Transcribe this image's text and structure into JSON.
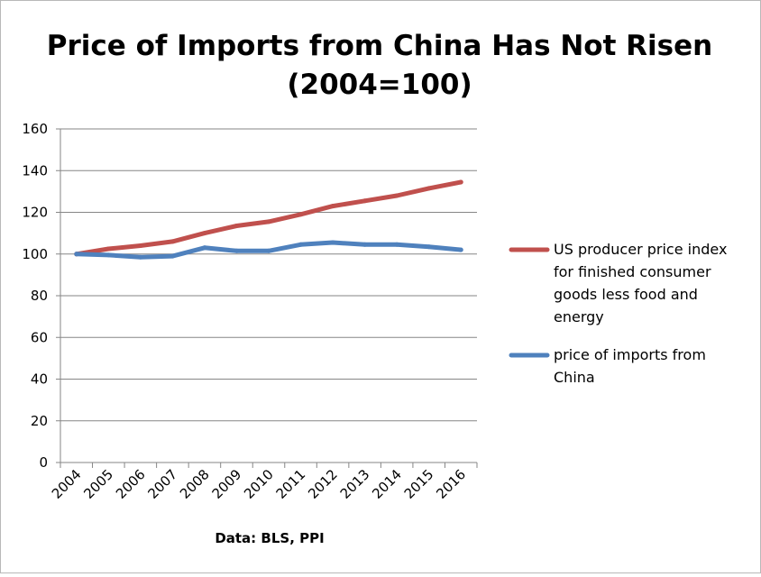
{
  "chart_data": {
    "type": "line",
    "title_lines": [
      "Price of Imports from China Has Not Risen",
      "(2004=100)"
    ],
    "xlabel": "Data: BLS, PPI",
    "ylabel": "",
    "ylim": [
      0,
      160
    ],
    "yticks": [
      0,
      20,
      40,
      60,
      80,
      100,
      120,
      140,
      160
    ],
    "grid": true,
    "legend_position": "right",
    "categories": [
      "2004",
      "2005",
      "2006",
      "2007",
      "2008",
      "2009",
      "2010",
      "2011",
      "2012",
      "2013",
      "2014",
      "2015",
      "2016"
    ],
    "series": [
      {
        "name_lines": [
          "US producer price index",
          "for finished consumer",
          "goods less food and",
          "energy"
        ],
        "color": "#c0504d",
        "values": [
          100,
          102.5,
          104,
          106,
          110,
          113.5,
          115.5,
          119,
          123,
          125.5,
          128,
          131.5,
          134.5
        ]
      },
      {
        "name_lines": [
          "price of imports from",
          "China"
        ],
        "color": "#4f81bd",
        "values": [
          100,
          99.5,
          98.5,
          99,
          103,
          101.5,
          101.5,
          104.5,
          105.5,
          104.5,
          104.5,
          103.5,
          102
        ]
      }
    ]
  }
}
